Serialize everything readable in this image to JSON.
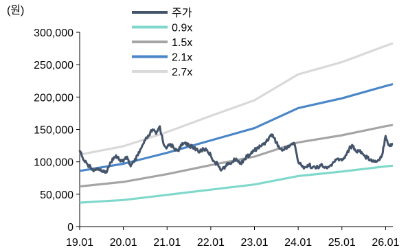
{
  "chart_data": {
    "type": "line",
    "unit_label": "(원)",
    "x_ticks": [
      "19.01",
      "20.01",
      "21.01",
      "22.01",
      "23.01",
      "24.01",
      "25.01",
      "26.01"
    ],
    "y_ticks": [
      "0",
      "50,000",
      "100,000",
      "150,000",
      "200,000",
      "250,000",
      "300,000"
    ],
    "xlim": [
      "2019-01",
      "2026-03"
    ],
    "ylim": [
      0,
      300000
    ],
    "grid": false,
    "legend_position": "top-center",
    "series": [
      {
        "name": "주가",
        "color": "#44546a",
        "points": [
          [
            "2019-01",
            118000
          ],
          [
            "2019-02",
            103000
          ],
          [
            "2019-03",
            97000
          ],
          [
            "2019-04",
            92000
          ],
          [
            "2019-05",
            87000
          ],
          [
            "2019-06",
            90000
          ],
          [
            "2019-07",
            85000
          ],
          [
            "2019-08",
            83000
          ],
          [
            "2019-09",
            92000
          ],
          [
            "2019-10",
            105000
          ],
          [
            "2019-11",
            110000
          ],
          [
            "2019-12",
            103000
          ],
          [
            "2020-01",
            100000
          ],
          [
            "2020-02",
            108000
          ],
          [
            "2020-03",
            93000
          ],
          [
            "2020-04",
            100000
          ],
          [
            "2020-05",
            110000
          ],
          [
            "2020-06",
            122000
          ],
          [
            "2020-07",
            133000
          ],
          [
            "2020-08",
            140000
          ],
          [
            "2020-09",
            150000
          ],
          [
            "2020-10",
            143000
          ],
          [
            "2020-11",
            155000
          ],
          [
            "2020-12",
            128000
          ],
          [
            "2021-01",
            122000
          ],
          [
            "2021-02",
            127000
          ],
          [
            "2021-03",
            120000
          ],
          [
            "2021-04",
            118000
          ],
          [
            "2021-05",
            125000
          ],
          [
            "2021-06",
            130000
          ],
          [
            "2021-07",
            126000
          ],
          [
            "2021-08",
            122000
          ],
          [
            "2021-09",
            120000
          ],
          [
            "2021-10",
            115000
          ],
          [
            "2021-11",
            120000
          ],
          [
            "2021-12",
            118000
          ],
          [
            "2022-01",
            110000
          ],
          [
            "2022-02",
            100000
          ],
          [
            "2022-03",
            95000
          ],
          [
            "2022-04",
            88000
          ],
          [
            "2022-05",
            93000
          ],
          [
            "2022-06",
            97000
          ],
          [
            "2022-07",
            100000
          ],
          [
            "2022-08",
            105000
          ],
          [
            "2022-09",
            97000
          ],
          [
            "2022-10",
            103000
          ],
          [
            "2022-11",
            108000
          ],
          [
            "2022-12",
            112000
          ],
          [
            "2023-01",
            118000
          ],
          [
            "2023-02",
            122000
          ],
          [
            "2023-03",
            125000
          ],
          [
            "2023-04",
            130000
          ],
          [
            "2023-05",
            138000
          ],
          [
            "2023-06",
            142000
          ],
          [
            "2023-07",
            130000
          ],
          [
            "2023-08",
            120000
          ],
          [
            "2023-09",
            118000
          ],
          [
            "2023-10",
            123000
          ],
          [
            "2023-11",
            127000
          ],
          [
            "2023-12",
            128000
          ],
          [
            "2024-01",
            100000
          ],
          [
            "2024-02",
            93000
          ],
          [
            "2024-03",
            92000
          ],
          [
            "2024-04",
            95000
          ],
          [
            "2024-05",
            92000
          ],
          [
            "2024-06",
            90000
          ],
          [
            "2024-07",
            95000
          ],
          [
            "2024-08",
            92000
          ],
          [
            "2024-09",
            90000
          ],
          [
            "2024-10",
            95000
          ],
          [
            "2024-11",
            100000
          ],
          [
            "2024-12",
            105000
          ],
          [
            "2025-01",
            102000
          ],
          [
            "2025-02",
            110000
          ],
          [
            "2025-03",
            120000
          ],
          [
            "2025-04",
            125000
          ],
          [
            "2025-05",
            115000
          ],
          [
            "2025-06",
            118000
          ],
          [
            "2025-07",
            110000
          ],
          [
            "2025-08",
            106000
          ],
          [
            "2025-09",
            104000
          ],
          [
            "2025-10",
            100000
          ],
          [
            "2025-11",
            103000
          ],
          [
            "2025-12",
            110000
          ],
          [
            "2026-01",
            140000
          ],
          [
            "2026-02",
            125000
          ],
          [
            "2026-03",
            128000
          ]
        ]
      },
      {
        "name": "0.9x",
        "color": "#7fd8cb",
        "points": [
          [
            "2019-01",
            37000
          ],
          [
            "2020-01",
            41000
          ],
          [
            "2021-01",
            49000
          ],
          [
            "2022-01",
            57000
          ],
          [
            "2023-01",
            65000
          ],
          [
            "2024-01",
            78000
          ],
          [
            "2025-01",
            85000
          ],
          [
            "2026-01",
            93000
          ],
          [
            "2026-03",
            94000
          ]
        ]
      },
      {
        "name": "1.5x",
        "color": "#a5a5a5",
        "points": [
          [
            "2019-01",
            62000
          ],
          [
            "2020-01",
            69000
          ],
          [
            "2021-01",
            81000
          ],
          [
            "2022-01",
            95000
          ],
          [
            "2023-01",
            108000
          ],
          [
            "2024-01",
            130000
          ],
          [
            "2025-01",
            141000
          ],
          [
            "2026-01",
            155000
          ],
          [
            "2026-03",
            157000
          ]
        ]
      },
      {
        "name": "2.1x",
        "color": "#4a86c8",
        "points": [
          [
            "2019-01",
            86000
          ],
          [
            "2020-01",
            97000
          ],
          [
            "2021-01",
            114000
          ],
          [
            "2022-01",
            133000
          ],
          [
            "2023-01",
            152000
          ],
          [
            "2024-01",
            183000
          ],
          [
            "2025-01",
            198000
          ],
          [
            "2026-01",
            217000
          ],
          [
            "2026-03",
            220000
          ]
        ]
      },
      {
        "name": "2.7x",
        "color": "#d9d9d9",
        "points": [
          [
            "2019-01",
            111000
          ],
          [
            "2020-01",
            124000
          ],
          [
            "2021-01",
            146000
          ],
          [
            "2022-01",
            171000
          ],
          [
            "2023-01",
            195000
          ],
          [
            "2024-01",
            235000
          ],
          [
            "2025-01",
            254000
          ],
          [
            "2026-01",
            279000
          ],
          [
            "2026-03",
            283000
          ]
        ]
      }
    ]
  }
}
